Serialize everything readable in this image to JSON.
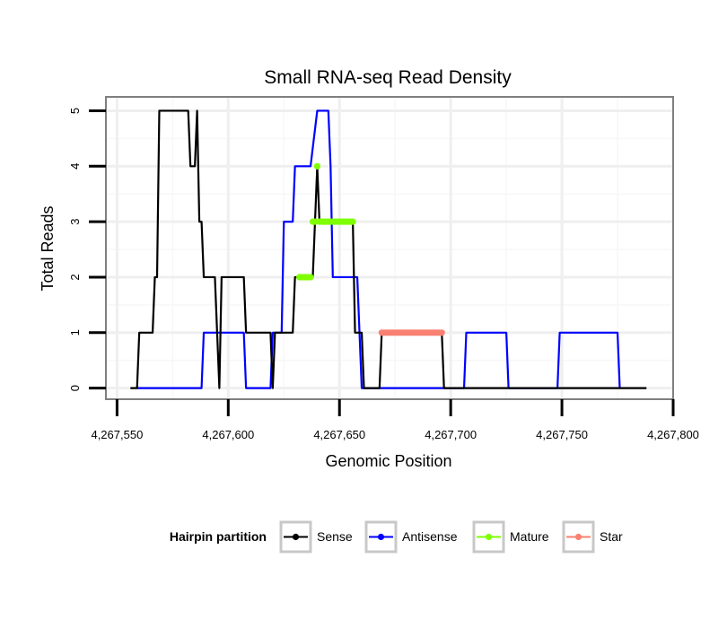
{
  "chart_data": {
    "type": "line",
    "title": "Small RNA-seq Read Density",
    "xlabel": "Genomic Position",
    "ylabel": "Total Reads",
    "xlim": [
      4267545,
      4267800
    ],
    "ylim": [
      -0.2,
      5.25
    ],
    "x_ticks": [
      4267550,
      4267600,
      4267650,
      4267700,
      4267750,
      4267800
    ],
    "x_tick_labels": [
      "4,267,550",
      "4,267,600",
      "4,267,650",
      "4,267,700",
      "4,267,750",
      "4,267,800"
    ],
    "y_ticks": [
      0,
      1,
      2,
      3,
      4,
      5
    ],
    "y_tick_labels": [
      "0",
      "1",
      "2",
      "3",
      "4",
      "5"
    ],
    "grid": true,
    "legend": {
      "title": "Hairpin partition",
      "position": "bottom",
      "entries": [
        "Sense",
        "Antisense",
        "Mature",
        "Star"
      ]
    },
    "series": [
      {
        "name": "Sense",
        "style": "step-line",
        "color": "#000000",
        "points": [
          [
            4267556,
            0
          ],
          [
            4267559,
            0
          ],
          [
            4267560,
            1
          ],
          [
            4267566,
            1
          ],
          [
            4267567,
            2
          ],
          [
            4267568,
            2
          ],
          [
            4267569,
            5
          ],
          [
            4267582,
            5
          ],
          [
            4267583,
            4
          ],
          [
            4267585,
            4
          ],
          [
            4267586,
            5
          ],
          [
            4267587,
            3
          ],
          [
            4267588,
            3
          ],
          [
            4267589,
            2
          ],
          [
            4267594,
            2
          ],
          [
            4267595,
            1
          ],
          [
            4267596,
            0
          ],
          [
            4267597,
            2
          ],
          [
            4267607,
            2
          ],
          [
            4267608,
            1
          ],
          [
            4267619,
            1
          ],
          [
            4267620,
            0
          ],
          [
            4267621,
            1
          ],
          [
            4267629,
            1
          ],
          [
            4267630,
            2
          ],
          [
            4267638,
            2
          ],
          [
            4267639,
            3
          ],
          [
            4267640,
            4
          ],
          [
            4267641,
            3
          ],
          [
            4267656,
            3
          ],
          [
            4267657,
            1
          ],
          [
            4267660,
            1
          ],
          [
            4267661,
            0
          ],
          [
            4267668,
            0
          ],
          [
            4267669,
            1
          ],
          [
            4267696,
            1
          ],
          [
            4267697,
            0
          ],
          [
            4267788,
            0
          ]
        ]
      },
      {
        "name": "Antisense",
        "style": "step-line",
        "color": "#0000ff",
        "points": [
          [
            4267559,
            0
          ],
          [
            4267588,
            0
          ],
          [
            4267589,
            1
          ],
          [
            4267607,
            1
          ],
          [
            4267608,
            0
          ],
          [
            4267619,
            0
          ],
          [
            4267620,
            1
          ],
          [
            4267624,
            1
          ],
          [
            4267625,
            3
          ],
          [
            4267629,
            3
          ],
          [
            4267630,
            4
          ],
          [
            4267636,
            4
          ],
          [
            4267637,
            4
          ],
          [
            4267640,
            5
          ],
          [
            4267645,
            5
          ],
          [
            4267646,
            4
          ],
          [
            4267647,
            2
          ],
          [
            4267651,
            2
          ],
          [
            4267652,
            2
          ],
          [
            4267658,
            2
          ],
          [
            4267659,
            1
          ],
          [
            4267660,
            0
          ],
          [
            4267706,
            0
          ],
          [
            4267707,
            1
          ],
          [
            4267725,
            1
          ],
          [
            4267726,
            0
          ],
          [
            4267748,
            0
          ],
          [
            4267749,
            1
          ],
          [
            4267775,
            1
          ],
          [
            4267776,
            0
          ]
        ]
      },
      {
        "name": "Mature",
        "style": "points",
        "color": "#7fff00",
        "points": [
          [
            4267632,
            2
          ],
          [
            4267633,
            2
          ],
          [
            4267634,
            2
          ],
          [
            4267635,
            2
          ],
          [
            4267636,
            2
          ],
          [
            4267637,
            2
          ],
          [
            4267638,
            3
          ],
          [
            4267639,
            3
          ],
          [
            4267640,
            4
          ],
          [
            4267641,
            3
          ],
          [
            4267642,
            3
          ],
          [
            4267643,
            3
          ],
          [
            4267644,
            3
          ],
          [
            4267645,
            3
          ],
          [
            4267646,
            3
          ],
          [
            4267647,
            3
          ],
          [
            4267648,
            3
          ],
          [
            4267649,
            3
          ],
          [
            4267650,
            3
          ],
          [
            4267651,
            3
          ],
          [
            4267652,
            3
          ],
          [
            4267653,
            3
          ],
          [
            4267654,
            3
          ],
          [
            4267655,
            3
          ],
          [
            4267656,
            3
          ]
        ]
      },
      {
        "name": "Star",
        "style": "points",
        "color": "#fa8072",
        "points": [
          [
            4267669,
            1
          ],
          [
            4267670,
            1
          ],
          [
            4267671,
            1
          ],
          [
            4267672,
            1
          ],
          [
            4267673,
            1
          ],
          [
            4267674,
            1
          ],
          [
            4267675,
            1
          ],
          [
            4267676,
            1
          ],
          [
            4267677,
            1
          ],
          [
            4267678,
            1
          ],
          [
            4267679,
            1
          ],
          [
            4267680,
            1
          ],
          [
            4267681,
            1
          ],
          [
            4267682,
            1
          ],
          [
            4267683,
            1
          ],
          [
            4267684,
            1
          ],
          [
            4267685,
            1
          ],
          [
            4267686,
            1
          ],
          [
            4267687,
            1
          ],
          [
            4267688,
            1
          ],
          [
            4267689,
            1
          ],
          [
            4267690,
            1
          ],
          [
            4267691,
            1
          ],
          [
            4267692,
            1
          ],
          [
            4267693,
            1
          ],
          [
            4267694,
            1
          ],
          [
            4267695,
            1
          ],
          [
            4267696,
            1
          ]
        ]
      }
    ]
  }
}
